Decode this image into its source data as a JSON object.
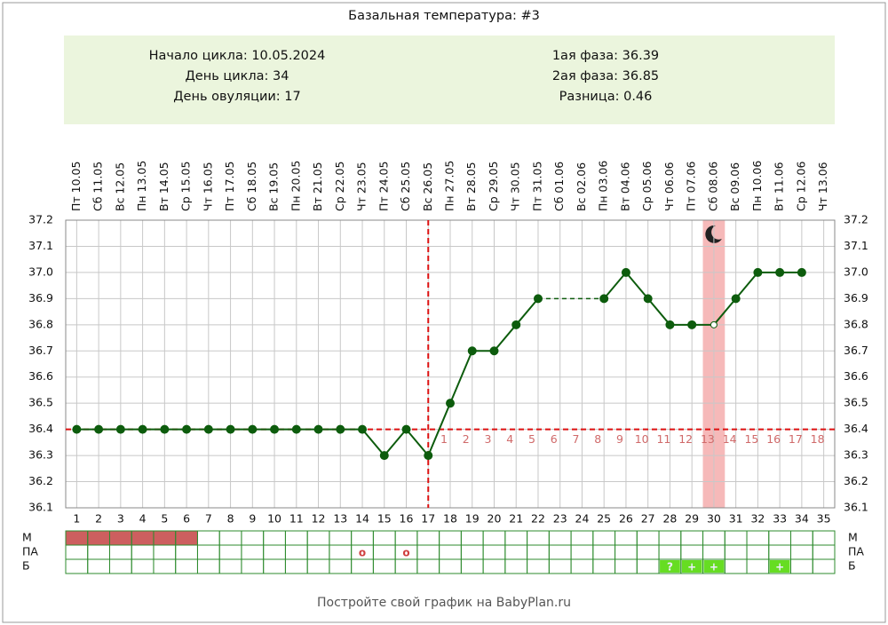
{
  "title": "Базальная температура: #3",
  "summary": {
    "left": [
      "Начало цикла: 10.05.2024",
      "День цикла: 34",
      "День овуляции: 17"
    ],
    "right": [
      "1ая фаза: 36.39",
      "2ая фаза: 36.85",
      "Разница: 0.46"
    ]
  },
  "footer": "Постройте свой график на BabyPlan.ru",
  "chart_data": {
    "type": "line",
    "x": [
      1,
      2,
      3,
      4,
      5,
      6,
      7,
      8,
      9,
      10,
      11,
      12,
      13,
      14,
      15,
      16,
      17,
      18,
      19,
      20,
      21,
      22,
      23,
      24,
      25,
      26,
      27,
      28,
      29,
      30,
      31,
      32,
      33,
      34,
      35
    ],
    "xlim": [
      0.5,
      35.5
    ],
    "dates": [
      "Пт 10.05",
      "Сб 11.05",
      "Вс 12.05",
      "Пн 13.05",
      "Вт 14.05",
      "Ср 15.05",
      "Чт 16.05",
      "Пт 17.05",
      "Сб 18.05",
      "Вс 19.05",
      "Пн 20.05",
      "Вт 21.05",
      "Ср 22.05",
      "Чт 23.05",
      "Пт 24.05",
      "Сб 25.05",
      "Вс 26.05",
      "Пн 27.05",
      "Вт 28.05",
      "Ср 29.05",
      "Чт 30.05",
      "Пт 31.05",
      "Сб 01.06",
      "Вс 02.06",
      "Пн 03.06",
      "Вт 04.06",
      "Ср 05.06",
      "Чт 06.06",
      "Пт 07.06",
      "Сб 08.06",
      "Вс 09.06",
      "Пн 10.06",
      "Вт 11.06",
      "Ср 12.06",
      "Чт 13.06"
    ],
    "values": [
      36.4,
      36.4,
      36.4,
      36.4,
      36.4,
      36.4,
      36.4,
      36.4,
      36.4,
      36.4,
      36.4,
      36.4,
      36.4,
      36.4,
      36.3,
      36.4,
      36.3,
      36.5,
      36.7,
      36.7,
      36.8,
      36.9,
      null,
      null,
      36.9,
      37.0,
      36.9,
      36.8,
      36.8,
      36.8,
      36.9,
      37.0,
      37.0,
      37.0,
      null
    ],
    "color": "#0d5c0d",
    "bridge_gaps": true,
    "open_points": [
      30
    ],
    "ylim": [
      36.1,
      37.2
    ],
    "yticks": [
      36.1,
      36.2,
      36.3,
      36.4,
      36.5,
      36.6,
      36.7,
      36.8,
      36.9,
      {
        "value": 37.0,
        "label": "37.0"
      },
      37.1,
      37.2
    ],
    "grid": true,
    "coverline": 36.4,
    "ovulation_day": 17,
    "reference_color": "#dd1111",
    "phase2_days": [
      1,
      2,
      3,
      4,
      5,
      6,
      7,
      8,
      9,
      10,
      11,
      12,
      13,
      14,
      15,
      16,
      17,
      18
    ],
    "phase2_color": "#d06a6a",
    "highlight_day": 30,
    "highlight_color": "#f6b9b9",
    "rows": [
      {
        "label": "М",
        "filled_days": [
          1,
          2,
          3,
          4,
          5,
          6
        ],
        "color": "#cd5f5f"
      },
      {
        "label": "ПА",
        "marks": [
          {
            "day": 14,
            "text": "о"
          },
          {
            "day": 16,
            "text": "о"
          }
        ],
        "color": "#d04040"
      },
      {
        "label": "Б",
        "marks": [
          {
            "day": 28,
            "text": "?"
          },
          {
            "day": 29,
            "text": "+"
          },
          {
            "day": 30,
            "text": "+"
          },
          {
            "day": 33,
            "text": "+"
          }
        ],
        "color": "#66dd22"
      }
    ]
  }
}
